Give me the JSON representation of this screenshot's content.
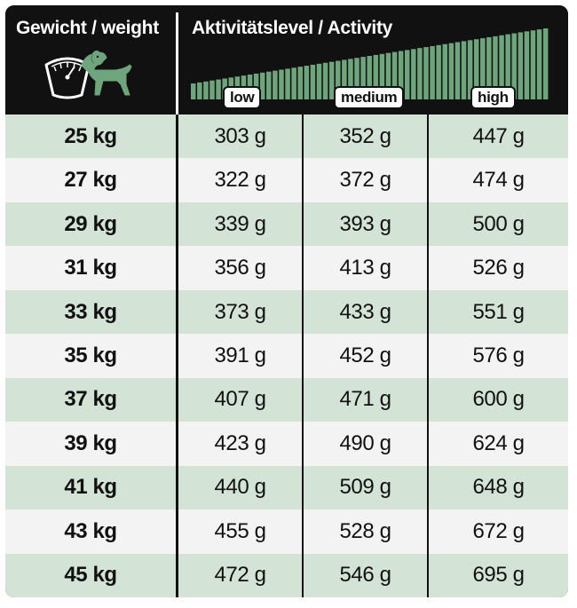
{
  "header": {
    "weight_label": "Gewicht / weight",
    "activity_label": "Aktivitätslevel / Activity",
    "levels": [
      "low",
      "medium",
      "high"
    ]
  },
  "rows": [
    {
      "weight": "25 kg",
      "low": "303 g",
      "medium": "352 g",
      "high": "447 g"
    },
    {
      "weight": "27 kg",
      "low": "322 g",
      "medium": "372 g",
      "high": "474 g"
    },
    {
      "weight": "29 kg",
      "low": "339 g",
      "medium": "393 g",
      "high": "500 g"
    },
    {
      "weight": "31 kg",
      "low": "356 g",
      "medium": "413 g",
      "high": "526 g"
    },
    {
      "weight": "33 kg",
      "low": "373 g",
      "medium": "433 g",
      "high": "551 g"
    },
    {
      "weight": "35 kg",
      "low": "391 g",
      "medium": "452 g",
      "high": "576 g"
    },
    {
      "weight": "37 kg",
      "low": "407 g",
      "medium": "471 g",
      "high": "600 g"
    },
    {
      "weight": "39 kg",
      "low": "423 g",
      "medium": "490 g",
      "high": "624 g"
    },
    {
      "weight": "41 kg",
      "low": "440 g",
      "medium": "509 g",
      "high": "648 g"
    },
    {
      "weight": "43 kg",
      "low": "455 g",
      "medium": "528 g",
      "high": "672 g"
    },
    {
      "weight": "45 kg",
      "low": "472 g",
      "medium": "546 g",
      "high": "695 g"
    }
  ],
  "colors": {
    "frame": "#111111",
    "row_tint": "#d3e3d6",
    "row_plain": "#f3f3f3",
    "accent_green": "#6fa57c"
  },
  "icons": [
    "scale-icon",
    "dog-icon",
    "activity-ramp-icon"
  ]
}
